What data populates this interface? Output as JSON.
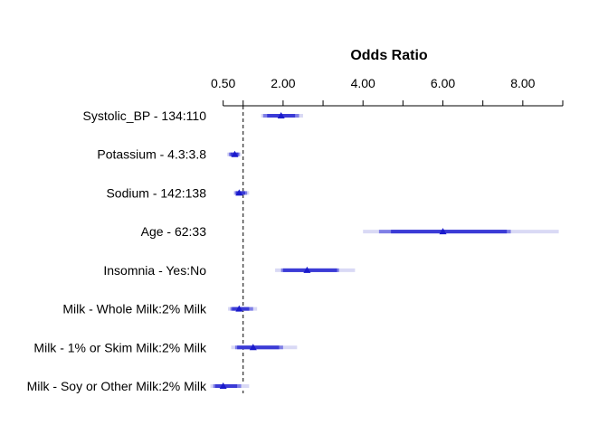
{
  "chart_data": {
    "type": "forest",
    "title": "Odds Ratio",
    "xlim": [
      0.1,
      9.0
    ],
    "x_ticks": [
      {
        "value": 0.5,
        "label": "0.50"
      },
      {
        "value": 1.0,
        "label": ""
      },
      {
        "value": 2.0,
        "label": "2.00"
      },
      {
        "value": 3.0,
        "label": ""
      },
      {
        "value": 4.0,
        "label": "4.00"
      },
      {
        "value": 5.0,
        "label": ""
      },
      {
        "value": 6.0,
        "label": "6.00"
      },
      {
        "value": 7.0,
        "label": ""
      },
      {
        "value": 8.0,
        "label": "8.00"
      },
      {
        "value": 9.0,
        "label": ""
      }
    ],
    "reference_line": 1.0,
    "colors": {
      "point": "#1a1acc",
      "ci_inner": "#3b3bd6",
      "ci_mid": "#7f7fe6",
      "ci_outer": "#d9d9f5",
      "reference": "#000000"
    },
    "rows": [
      {
        "label": "Systolic_BP - 134:110",
        "estimate": 1.95,
        "ci90": [
          1.6,
          2.3
        ],
        "ci95": [
          1.5,
          2.4
        ],
        "ci99": [
          1.45,
          2.5
        ]
      },
      {
        "label": "Potassium - 4.3:3.8",
        "estimate": 0.79,
        "ci90": [
          0.68,
          0.88
        ],
        "ci95": [
          0.64,
          0.91
        ],
        "ci99": [
          0.6,
          0.95
        ]
      },
      {
        "label": "Sodium - 142:138",
        "estimate": 0.9,
        "ci90": [
          0.82,
          1.05
        ],
        "ci95": [
          0.79,
          1.1
        ],
        "ci99": [
          0.76,
          1.15
        ]
      },
      {
        "label": "Age - 62:33",
        "estimate": 6.0,
        "ci90": [
          4.7,
          7.6
        ],
        "ci95": [
          4.4,
          7.7
        ],
        "ci99": [
          4.0,
          8.9
        ]
      },
      {
        "label": "Insomnia - Yes:No",
        "estimate": 2.6,
        "ci90": [
          2.0,
          3.35
        ],
        "ci95": [
          1.95,
          3.4
        ],
        "ci99": [
          1.8,
          3.8
        ]
      },
      {
        "label": "Milk - Whole Milk:2% Milk",
        "estimate": 0.9,
        "ci90": [
          0.72,
          1.15
        ],
        "ci95": [
          0.68,
          1.25
        ],
        "ci99": [
          0.62,
          1.35
        ]
      },
      {
        "label": "Milk - 1% or Skim Milk:2% Milk",
        "estimate": 1.25,
        "ci90": [
          0.85,
          1.9
        ],
        "ci95": [
          0.8,
          2.0
        ],
        "ci99": [
          0.7,
          2.35
        ]
      },
      {
        "label": "Milk - Soy or Other Milk:2% Milk",
        "estimate": 0.5,
        "ci90": [
          0.3,
          0.85
        ],
        "ci95": [
          0.25,
          0.95
        ],
        "ci99": [
          0.18,
          1.15
        ]
      }
    ]
  }
}
